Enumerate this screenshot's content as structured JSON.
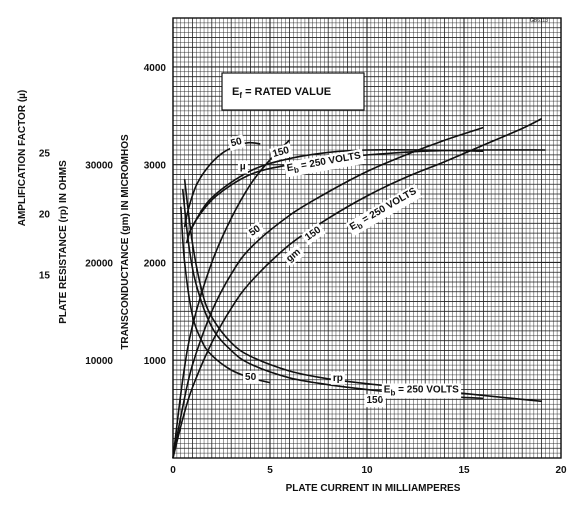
{
  "chart_data": {
    "type": "line",
    "drawing_code": "ĜB6113",
    "xlabel": "PLATE CURRENT IN MILLIAMPERES",
    "xlim": [
      0,
      20
    ],
    "x_ticks": [
      0,
      5,
      10,
      15,
      20
    ],
    "axes": {
      "gm": {
        "label": "TRANSCONDUCTANCE (gm) IN MICROMHOS",
        "ylim": [
          0,
          4500
        ],
        "ticks": [
          1000,
          2000,
          3000,
          4000
        ]
      },
      "rp": {
        "label": "PLATE RESISTANCE (rp) IN OHMS",
        "ylim": [
          0,
          45000
        ],
        "ticks": [
          10000,
          20000,
          30000
        ]
      },
      "mu": {
        "label": "AMPLIFICATION FACTOR (µ)",
        "ylim": [
          0,
          36
        ],
        "ticks": [
          15,
          20,
          25
        ]
      }
    },
    "grid": true,
    "annotation": {
      "text_main": "E",
      "text_sub": "f",
      "text_rest": " = RATED VALUE"
    },
    "series": [
      {
        "family": "mu",
        "axis": "mu",
        "name": "50",
        "x": [
          0.6,
          0.8,
          1.2,
          1.8,
          2.5,
          3.2,
          3.9,
          4.5
        ],
        "y": [
          18.9,
          20.4,
          22.3,
          23.8,
          24.9,
          25.5,
          25.8,
          25.7
        ]
      },
      {
        "family": "mu",
        "axis": "mu",
        "name": "150",
        "x": [
          0.7,
          1,
          2,
          4,
          6,
          8,
          10,
          13,
          16
        ],
        "y": [
          17.6,
          18.9,
          21.3,
          23.5,
          24.5,
          25,
          25.2,
          25.2,
          25.1
        ]
      },
      {
        "family": "mu",
        "axis": "mu",
        "name": "E_b = 250 VOLTS",
        "x": [
          0.8,
          1.2,
          2.2,
          4,
          6,
          8,
          10,
          13,
          16,
          19.2
        ],
        "y": [
          18.3,
          19.5,
          21.4,
          23.2,
          24,
          24.5,
          24.8,
          25.1,
          25.2,
          25.2
        ]
      },
      {
        "family": "gm",
        "axis": "gm",
        "name": "50",
        "x": [
          0,
          0.5,
          1,
          2,
          3,
          4,
          5,
          6
        ],
        "y": [
          0,
          800,
          1350,
          2000,
          2450,
          2800,
          3050,
          3250
        ]
      },
      {
        "family": "gm",
        "axis": "gm",
        "name": "150",
        "x": [
          0,
          0.5,
          1,
          2,
          3,
          4,
          6,
          8,
          10,
          12,
          14,
          16
        ],
        "y": [
          0,
          520,
          950,
          1500,
          1880,
          2150,
          2480,
          2720,
          2930,
          3100,
          3250,
          3380
        ]
      },
      {
        "family": "gm",
        "axis": "gm",
        "name": "E_b = 250 VOLTS",
        "x": [
          0,
          0.5,
          1,
          2,
          3,
          4,
          6,
          8,
          10,
          12,
          14,
          16,
          18,
          19
        ],
        "y": [
          0,
          400,
          720,
          1180,
          1530,
          1800,
          2180,
          2450,
          2680,
          2870,
          3030,
          3200,
          3370,
          3470
        ]
      },
      {
        "family": "rp",
        "axis": "rp",
        "name": "50",
        "x": [
          0.4,
          0.6,
          1,
          1.5,
          2,
          3,
          4,
          5
        ],
        "y": [
          25700,
          20000,
          14600,
          11900,
          10500,
          9000,
          8200,
          7700
        ]
      },
      {
        "family": "rp",
        "axis": "rp",
        "name": "150",
        "x": [
          0.5,
          0.8,
          1.2,
          2,
          3,
          4,
          6,
          8,
          10,
          12,
          14,
          16
        ],
        "y": [
          27500,
          22000,
          17700,
          13400,
          11000,
          9600,
          8200,
          7500,
          7000,
          6600,
          6300,
          6100
        ]
      },
      {
        "family": "rp",
        "axis": "rp",
        "name": "E_b = 250 VOLTS",
        "x": [
          0.6,
          1,
          1.5,
          2,
          3,
          4,
          6,
          8,
          10,
          12,
          14,
          16,
          19
        ],
        "y": [
          28500,
          22000,
          17000,
          14400,
          11800,
          10400,
          8900,
          8100,
          7600,
          7200,
          6800,
          6400,
          5800
        ]
      }
    ],
    "curve_labels": [
      {
        "text": "50",
        "near_x": 3.3,
        "near_y_gm": 3200,
        "angle": -15
      },
      {
        "text": "150",
        "near_x": 5.6,
        "near_y_gm": 3100,
        "angle": -15
      },
      {
        "text": "µ",
        "near_x": 3.6,
        "near_y_gm": 2950,
        "angle": 0
      },
      {
        "text": "E_b = 250 VOLTS",
        "near_x": 7.8,
        "near_y_gm": 3000,
        "angle": -10
      },
      {
        "text": "50",
        "near_x": 4.3,
        "near_y_gm": 2300,
        "angle": -35
      },
      {
        "text": "150",
        "near_x": 7.3,
        "near_y_gm": 2270,
        "angle": -35
      },
      {
        "text": "gm",
        "near_x": 6.3,
        "near_y_gm": 2050,
        "angle": -40
      },
      {
        "text": "E_b = 250 VOLTS",
        "near_x": 10.9,
        "near_y_gm": 2520,
        "angle": -30
      },
      {
        "text": "50",
        "near_x": 4,
        "near_y_gm": 800,
        "angle": 0
      },
      {
        "text": "rp",
        "near_x": 8.5,
        "near_y_gm": 790,
        "angle": 0
      },
      {
        "text": "150",
        "near_x": 10.4,
        "near_y_gm": 560,
        "angle": 0
      },
      {
        "text": "E_b = 250 VOLTS",
        "near_x": 12.8,
        "near_y_gm": 670,
        "angle": 0
      }
    ]
  }
}
